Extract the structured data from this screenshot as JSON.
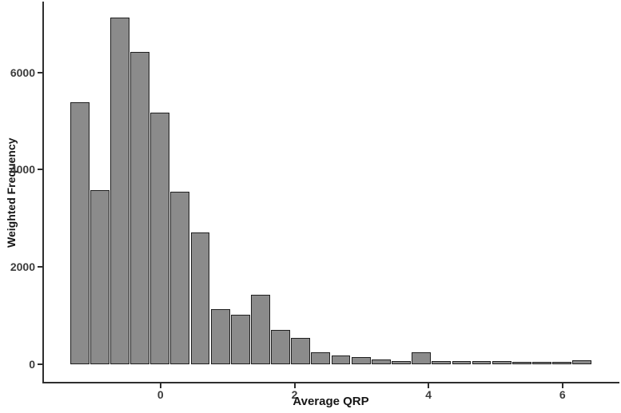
{
  "figure": {
    "background": "#ffffff"
  },
  "chart_data": {
    "type": "bar",
    "variant": "histogram",
    "title": "",
    "xlabel": "Average QRP",
    "ylabel": "Weighted Frequency",
    "bin_width": 0.3,
    "bin_centers": [
      -1.2,
      -0.9,
      -0.6,
      -0.3,
      0.0,
      0.3,
      0.6,
      0.9,
      1.2,
      1.5,
      1.8,
      2.1,
      2.4,
      2.7,
      3.0,
      3.3,
      3.6,
      3.9,
      4.2,
      4.5,
      4.8,
      5.1,
      5.4,
      5.7,
      6.0,
      6.3
    ],
    "values": [
      5350,
      3550,
      7100,
      6400,
      5150,
      3510,
      2680,
      1100,
      980,
      1390,
      670,
      510,
      215,
      150,
      110,
      60,
      40,
      210,
      30,
      30,
      25,
      25,
      20,
      20,
      20,
      45
    ],
    "x_ticks": [
      0,
      2,
      4,
      6
    ],
    "y_ticks": [
      0,
      2000,
      4000,
      6000
    ],
    "x_domain": [
      -1.74,
      6.85
    ],
    "y_domain": [
      -370,
      7455
    ],
    "grid": false,
    "legend_position": "none",
    "bar_fill": "#8b8b8b",
    "bar_stroke": "#1f1f1f",
    "axis_color": "#2e2e2e",
    "tick_label_color": "#3c3c3c",
    "title_color": "#161616"
  }
}
